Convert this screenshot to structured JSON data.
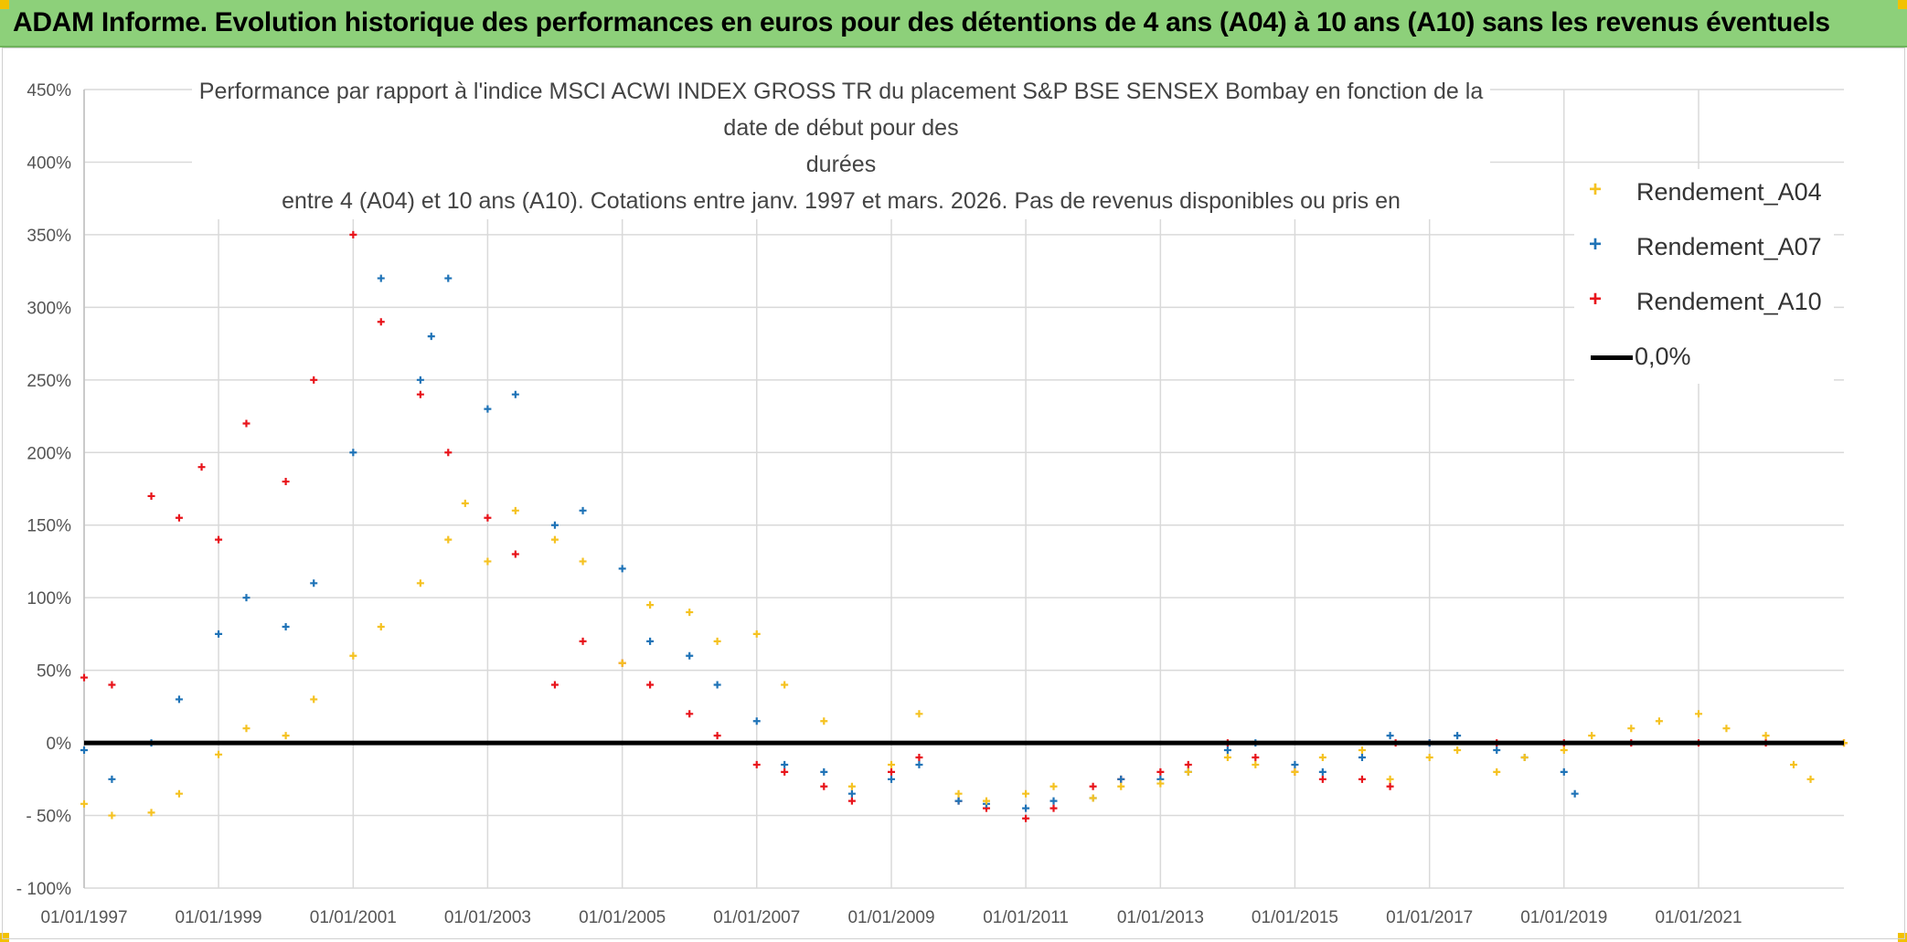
{
  "banner": {
    "title": "ADAM Informe. Evolution historique des performances en euros pour des détentions de 4 ans (A04) à 10 ans (A10) sans les revenus éventuels"
  },
  "colors": {
    "banner": "#8dd07a",
    "A04": "#f5c221",
    "A07": "#1f73b7",
    "A10": "#e8141b",
    "zero_line": "#000000",
    "grid": "#d9d9d9"
  },
  "chart_data": {
    "type": "scatter",
    "title_lines": [
      "Performance par rapport à l'indice MSCI ACWI INDEX GROSS TR  du placement S&P BSE SENSEX Bombay en fonction de la date de début pour des",
      "durées",
      "entre 4 (A04) et 10 ans (A10). Cotations entre janv. 1997 et mars. 2026. Pas de revenus disponibles ou pris en"
    ],
    "x_axis": {
      "type": "date",
      "range": [
        "1997-01-01",
        "2023-03-01"
      ],
      "tick_labels": [
        "01/01/1997",
        "01/01/1999",
        "01/01/2001",
        "01/01/2003",
        "01/01/2005",
        "01/01/2007",
        "01/01/2009",
        "01/01/2011",
        "01/01/2013",
        "01/01/2015",
        "01/01/2017",
        "01/01/2019",
        "01/01/2021"
      ],
      "tick_dates": [
        "1997-01-01",
        "1999-01-01",
        "2001-01-01",
        "2003-01-01",
        "2005-01-01",
        "2007-01-01",
        "2009-01-01",
        "2011-01-01",
        "2013-01-01",
        "2015-01-01",
        "2017-01-01",
        "2019-01-01",
        "2021-01-01"
      ],
      "grid": true
    },
    "y_axis": {
      "range": [
        -100,
        450
      ],
      "unit": "%",
      "tick_values": [
        450,
        400,
        350,
        300,
        250,
        200,
        150,
        100,
        50,
        0,
        -50,
        -100
      ],
      "tick_labels": [
        "450%",
        "400%",
        "350%",
        "300%",
        "250%",
        "200%",
        "150%",
        "100%",
        "50%",
        "0%",
        "- 50%",
        "- 100%"
      ],
      "grid": true
    },
    "legend": {
      "position": "top-right",
      "entries": [
        "Rendement_A04",
        "Rendement_A07",
        "Rendement_A10",
        "0,0%"
      ]
    },
    "reference_line": {
      "name": "0,0%",
      "y": 0
    },
    "series": [
      {
        "name": "Rendement_A04",
        "marker": "+",
        "x": [
          "1997-01-01",
          "1997-06-01",
          "1998-01-01",
          "1998-06-01",
          "1999-01-01",
          "1999-06-01",
          "2000-01-01",
          "2000-06-01",
          "2001-01-01",
          "2001-06-01",
          "2002-01-01",
          "2002-06-01",
          "2002-09-01",
          "2003-01-01",
          "2003-06-01",
          "2004-01-01",
          "2004-06-01",
          "2005-01-01",
          "2005-06-01",
          "2006-01-01",
          "2006-06-01",
          "2007-01-01",
          "2007-06-01",
          "2008-01-01",
          "2008-06-01",
          "2009-01-01",
          "2009-06-01",
          "2010-01-01",
          "2010-06-01",
          "2011-01-01",
          "2011-06-01",
          "2012-01-01",
          "2012-06-01",
          "2013-01-01",
          "2013-06-01",
          "2014-01-01",
          "2014-06-01",
          "2015-01-01",
          "2015-06-01",
          "2016-01-01",
          "2016-06-01",
          "2017-01-01",
          "2017-06-01",
          "2018-01-01",
          "2018-06-01",
          "2019-01-01",
          "2019-06-01",
          "2020-01-01",
          "2020-06-01",
          "2021-01-01",
          "2021-06-01",
          "2022-01-01",
          "2022-06-01",
          "2022-09-01",
          "2023-03-01"
        ],
        "y": [
          -42,
          -50,
          -48,
          -35,
          -8,
          10,
          5,
          30,
          60,
          80,
          110,
          140,
          165,
          125,
          160,
          140,
          125,
          55,
          95,
          90,
          70,
          75,
          40,
          15,
          -30,
          -15,
          20,
          -35,
          -40,
          -35,
          -30,
          -38,
          -30,
          -28,
          -20,
          -10,
          -15,
          -20,
          -10,
          -5,
          -25,
          -10,
          -5,
          -20,
          -10,
          -5,
          5,
          10,
          15,
          20,
          10,
          5,
          -15,
          -25,
          0
        ]
      },
      {
        "name": "Rendement_A07",
        "marker": "+",
        "x": [
          "1997-01-01",
          "1997-06-01",
          "1998-01-01",
          "1998-06-01",
          "1999-01-01",
          "1999-06-01",
          "2000-01-01",
          "2000-06-01",
          "2001-01-01",
          "2001-06-01",
          "2002-01-01",
          "2002-03-01",
          "2002-06-01",
          "2003-01-01",
          "2003-06-01",
          "2004-01-01",
          "2004-06-01",
          "2005-01-01",
          "2005-06-01",
          "2006-01-01",
          "2006-06-01",
          "2007-01-01",
          "2007-06-01",
          "2008-01-01",
          "2008-06-01",
          "2009-01-01",
          "2009-06-01",
          "2010-01-01",
          "2010-06-01",
          "2011-01-01",
          "2011-06-01",
          "2012-01-01",
          "2012-06-01",
          "2013-01-01",
          "2013-06-01",
          "2014-01-01",
          "2014-06-01",
          "2015-01-01",
          "2015-06-01",
          "2016-01-01",
          "2016-06-01",
          "2017-01-01",
          "2017-06-01",
          "2018-01-01",
          "2018-06-01",
          "2019-01-01",
          "2019-03-01"
        ],
        "y": [
          -5,
          -25,
          0,
          30,
          75,
          100,
          80,
          110,
          200,
          320,
          250,
          280,
          320,
          230,
          240,
          150,
          160,
          120,
          70,
          60,
          40,
          15,
          -15,
          -20,
          -35,
          -25,
          -15,
          -40,
          -42,
          -45,
          -40,
          -38,
          -25,
          -25,
          -20,
          -5,
          0,
          -15,
          -20,
          -10,
          5,
          0,
          5,
          -5,
          -10,
          -20,
          -35
        ]
      },
      {
        "name": "Rendement_A10",
        "marker": "+",
        "x": [
          "1997-01-01",
          "1997-06-01",
          "1998-01-01",
          "1998-06-01",
          "1998-10-01",
          "1999-01-01",
          "1999-06-01",
          "2000-01-01",
          "2000-06-01",
          "2001-01-01",
          "2001-06-01",
          "2002-01-01",
          "2002-06-01",
          "2003-01-01",
          "2003-06-01",
          "2004-01-01",
          "2004-06-01",
          "2005-01-01",
          "2005-06-01",
          "2006-01-01",
          "2006-06-01",
          "2007-01-01",
          "2007-06-01",
          "2008-01-01",
          "2008-06-01",
          "2009-01-01",
          "2009-06-01",
          "2010-01-01",
          "2010-06-01",
          "2011-01-01",
          "2011-06-01",
          "2012-01-01",
          "2012-06-01",
          "2013-01-01",
          "2013-06-01",
          "2014-01-01",
          "2014-06-01",
          "2015-01-01",
          "2015-06-01",
          "2016-01-01",
          "2016-06-01",
          "2016-07-01",
          "2017-01-01",
          "2018-01-01",
          "2019-01-01",
          "2020-01-01",
          "2021-01-01",
          "2022-01-01",
          "2023-03-01"
        ],
        "y": [
          45,
          40,
          170,
          155,
          190,
          140,
          220,
          180,
          250,
          350,
          290,
          240,
          200,
          155,
          130,
          40,
          70,
          55,
          40,
          20,
          5,
          -15,
          -20,
          -30,
          -40,
          -20,
          -10,
          -40,
          -45,
          -52,
          -45,
          -30,
          -25,
          -20,
          -15,
          0,
          -10,
          -20,
          -25,
          -25,
          -30,
          0,
          0,
          0,
          0,
          0,
          0,
          0,
          0
        ]
      }
    ]
  }
}
